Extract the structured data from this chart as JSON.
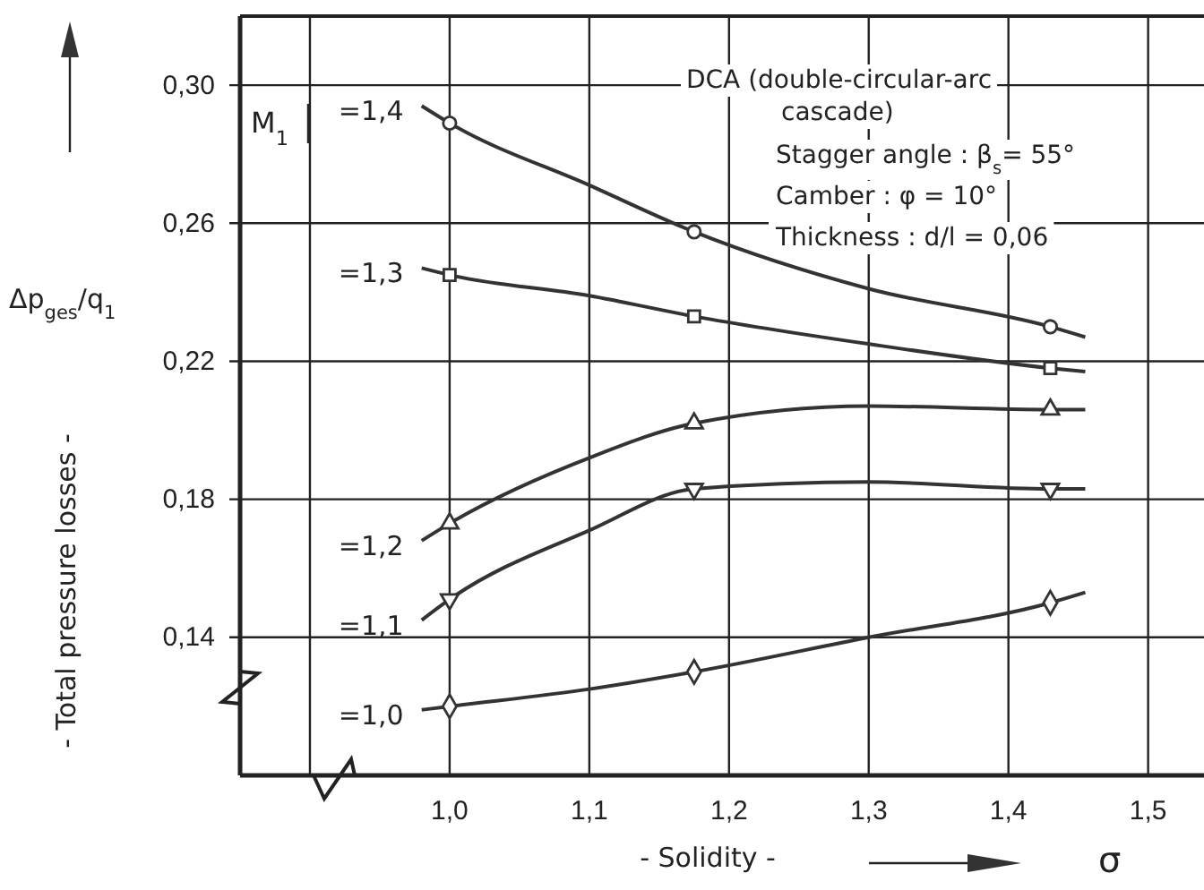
{
  "chart_data": {
    "type": "line",
    "xlabel": "- Solidity -",
    "ylabel": "- Total pressure losses -",
    "xlim": [
      0.85,
      1.54
    ],
    "ylim": [
      0.1,
      0.32
    ],
    "xticks": [
      {
        "value": 0.9,
        "label": null
      },
      {
        "value": 1.0,
        "label": "1,0"
      },
      {
        "value": 1.1,
        "label": "1,1"
      },
      {
        "value": 1.2,
        "label": "1,2"
      },
      {
        "value": 1.3,
        "label": "1,3"
      },
      {
        "value": 1.4,
        "label": "1,4"
      },
      {
        "value": 1.5,
        "label": "1,5"
      }
    ],
    "yticks": [
      {
        "value": 0.14,
        "label": "0,14"
      },
      {
        "value": 0.18,
        "label": "0,18"
      },
      {
        "value": 0.22,
        "label": "0,22"
      },
      {
        "value": 0.26,
        "label": "0,26"
      },
      {
        "value": 0.3,
        "label": "0,30"
      }
    ],
    "grid": true,
    "line_style": "solid",
    "series": [
      {
        "name": "=1,4",
        "color": "#333333",
        "marker": "none",
        "x": [
          0.98,
          1.0,
          1.1,
          1.175,
          1.3,
          1.43,
          1.455
        ],
        "values": [
          0.294,
          0.289,
          0.271,
          0.2575,
          0.241,
          0.23,
          0.227
        ]
      },
      {
        "name": "=1,3",
        "color": "#333333",
        "marker": "none",
        "x": [
          0.98,
          1.0,
          1.1,
          1.175,
          1.3,
          1.43,
          1.455
        ],
        "values": [
          0.247,
          0.245,
          0.239,
          0.233,
          0.225,
          0.218,
          0.217
        ]
      },
      {
        "name": "=1,2",
        "color": "#333333",
        "marker": "none",
        "x": [
          0.98,
          1.0,
          1.1,
          1.175,
          1.3,
          1.43,
          1.455
        ],
        "values": [
          0.168,
          0.173,
          0.192,
          0.202,
          0.207,
          0.206,
          0.206
        ]
      },
      {
        "name": "=1,1",
        "color": "#333333",
        "marker": "none",
        "x": [
          0.98,
          1.0,
          1.1,
          1.175,
          1.3,
          1.43,
          1.455
        ],
        "values": [
          0.145,
          0.151,
          0.171,
          0.183,
          0.185,
          0.183,
          0.183
        ]
      },
      {
        "name": "=1,0",
        "color": "#333333",
        "marker": "none",
        "x": [
          0.98,
          1.0,
          1.1,
          1.175,
          1.3,
          1.43,
          1.455
        ],
        "values": [
          0.119,
          0.12,
          0.125,
          0.13,
          0.14,
          0.15,
          0.153
        ]
      },
      {
        "type": "scatter",
        "color": "#333333",
        "marker": "circle",
        "x": [
          1.0,
          1.175,
          1.43
        ],
        "values": [
          0.289,
          0.2575,
          0.23
        ]
      },
      {
        "type": "scatter",
        "color": "#333333",
        "marker": "square",
        "x": [
          1.0,
          1.175,
          1.43
        ],
        "values": [
          0.245,
          0.233,
          0.218
        ]
      },
      {
        "type": "scatter",
        "color": "#333333",
        "marker": "triangle",
        "x": [
          1.0,
          1.175,
          1.43
        ],
        "values": [
          0.173,
          0.202,
          0.206
        ]
      },
      {
        "type": "scatter",
        "color": "#333333",
        "marker": "triangle-down",
        "x": [
          1.0,
          1.175,
          1.43
        ],
        "values": [
          0.151,
          0.183,
          0.183
        ]
      },
      {
        "type": "scatter",
        "color": "#333333",
        "marker": "diamond",
        "x": [
          1.0,
          1.175,
          1.43
        ],
        "values": [
          0.12,
          0.13,
          0.15
        ]
      }
    ],
    "annotations": [
      "Δp$_{ges}$/q$_{1}$",
      "M$_{1}$",
      "σ",
      "DCA (double-circular-arc",
      "cascade)",
      "Stagger angle : β$_{s}$= 55°",
      "Camber : φ = 10°",
      "Thickness : d/l = 0,06"
    ]
  }
}
